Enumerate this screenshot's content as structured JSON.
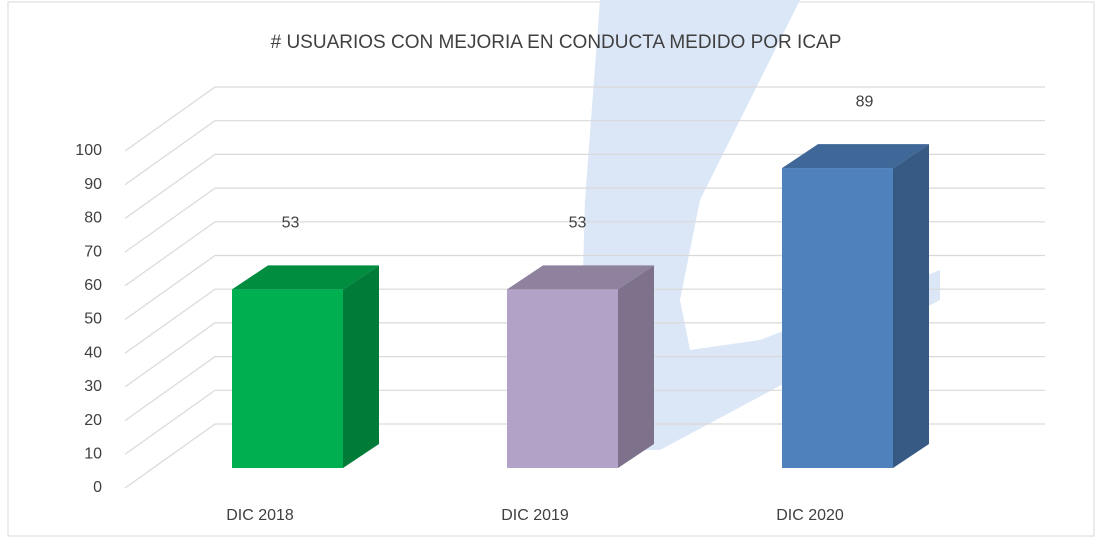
{
  "chart_data": {
    "type": "bar3d",
    "title": "# USUARIOS CON MEJORIA EN CONDUCTA MEDIDO POR ICAP",
    "categories": [
      "DIC 2018",
      "DIC 2019",
      "DIC 2020"
    ],
    "values": [
      53,
      53,
      89
    ],
    "colors": [
      "#00b050",
      "#b3a2c7",
      "#4f81bd"
    ],
    "ylim": [
      0,
      100
    ],
    "yticks": [
      0,
      10,
      20,
      30,
      40,
      50,
      60,
      70,
      80,
      90,
      100
    ],
    "grid": true
  }
}
